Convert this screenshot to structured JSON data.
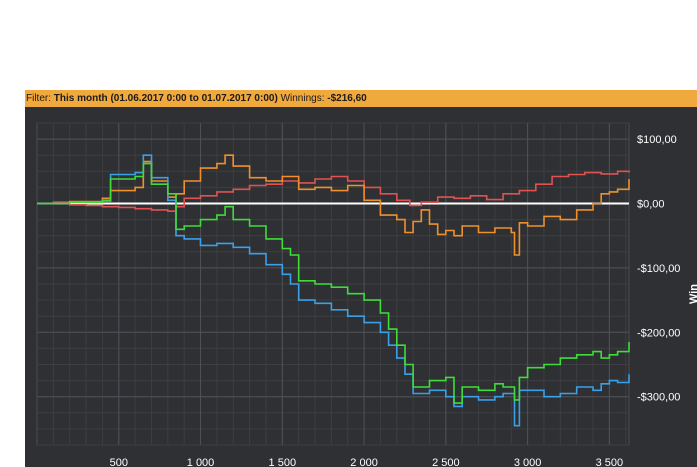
{
  "filter": {
    "label": "Filter:",
    "range_text": "This month (01.06.2017 0:00 to 01.07.2017 0:00)",
    "winnings_label": "Winnings:",
    "winnings_value": "-$216,60"
  },
  "chart_data": {
    "type": "line",
    "title": "",
    "xlabel": "",
    "ylabel": "Win",
    "xlim": [
      0,
      3620
    ],
    "ylim": [
      -375,
      125
    ],
    "grid": true,
    "y_axis_side": "right",
    "x_ticks": [
      {
        "value": 500,
        "label": "500"
      },
      {
        "value": 1000,
        "label": "1 000"
      },
      {
        "value": 1500,
        "label": "1 500"
      },
      {
        "value": 2000,
        "label": "2 000"
      },
      {
        "value": 2500,
        "label": "2 500"
      },
      {
        "value": 3000,
        "label": "3 000"
      },
      {
        "value": 3500,
        "label": "3 500"
      }
    ],
    "y_ticks": [
      {
        "value": 100,
        "label": "$100,00"
      },
      {
        "value": 0,
        "label": "$0,00"
      },
      {
        "value": -100,
        "label": "-$100,00"
      },
      {
        "value": -200,
        "label": "-$200,00"
      },
      {
        "value": -300,
        "label": "-$300,00"
      }
    ],
    "baseline": {
      "value": 0,
      "color": "#ffffff"
    },
    "series": [
      {
        "color": "#e05252",
        "points": [
          [
            0,
            0
          ],
          [
            100,
            2
          ],
          [
            200,
            -2
          ],
          [
            300,
            -3
          ],
          [
            400,
            -5
          ],
          [
            500,
            -6
          ],
          [
            600,
            -8
          ],
          [
            700,
            -10
          ],
          [
            800,
            -12
          ],
          [
            850,
            -5
          ],
          [
            900,
            8
          ],
          [
            1000,
            12
          ],
          [
            1100,
            18
          ],
          [
            1200,
            22
          ],
          [
            1300,
            28
          ],
          [
            1400,
            30
          ],
          [
            1500,
            35
          ],
          [
            1600,
            32
          ],
          [
            1700,
            38
          ],
          [
            1800,
            42
          ],
          [
            1900,
            35
          ],
          [
            2000,
            25
          ],
          [
            2100,
            15
          ],
          [
            2200,
            5
          ],
          [
            2280,
            -3
          ],
          [
            2350,
            2
          ],
          [
            2450,
            10
          ],
          [
            2550,
            8
          ],
          [
            2650,
            12
          ],
          [
            2750,
            6
          ],
          [
            2850,
            15
          ],
          [
            2950,
            20
          ],
          [
            3050,
            30
          ],
          [
            3150,
            42
          ],
          [
            3250,
            45
          ],
          [
            3350,
            48
          ],
          [
            3450,
            46
          ],
          [
            3550,
            50
          ],
          [
            3620,
            48
          ]
        ]
      },
      {
        "color": "#f0902c",
        "points": [
          [
            0,
            0
          ],
          [
            200,
            3
          ],
          [
            400,
            8
          ],
          [
            450,
            20
          ],
          [
            600,
            25
          ],
          [
            650,
            65
          ],
          [
            700,
            35
          ],
          [
            800,
            10
          ],
          [
            850,
            15
          ],
          [
            900,
            35
          ],
          [
            1000,
            55
          ],
          [
            1100,
            62
          ],
          [
            1150,
            75
          ],
          [
            1200,
            58
          ],
          [
            1300,
            40
          ],
          [
            1400,
            35
          ],
          [
            1500,
            42
          ],
          [
            1600,
            22
          ],
          [
            1700,
            25
          ],
          [
            1800,
            20
          ],
          [
            1900,
            28
          ],
          [
            2000,
            5
          ],
          [
            2100,
            -18
          ],
          [
            2200,
            -25
          ],
          [
            2250,
            -45
          ],
          [
            2300,
            -28
          ],
          [
            2350,
            -10
          ],
          [
            2400,
            -32
          ],
          [
            2450,
            -48
          ],
          [
            2500,
            -42
          ],
          [
            2550,
            -50
          ],
          [
            2600,
            -35
          ],
          [
            2700,
            -45
          ],
          [
            2800,
            -38
          ],
          [
            2900,
            -45
          ],
          [
            2920,
            -80
          ],
          [
            2950,
            -30
          ],
          [
            3000,
            -35
          ],
          [
            3100,
            -20
          ],
          [
            3200,
            -25
          ],
          [
            3300,
            -10
          ],
          [
            3400,
            0
          ],
          [
            3450,
            15
          ],
          [
            3500,
            18
          ],
          [
            3550,
            22
          ],
          [
            3620,
            38
          ]
        ]
      },
      {
        "color": "#3aa0e8",
        "points": [
          [
            0,
            0
          ],
          [
            200,
            2
          ],
          [
            400,
            5
          ],
          [
            450,
            45
          ],
          [
            600,
            48
          ],
          [
            650,
            75
          ],
          [
            700,
            40
          ],
          [
            800,
            5
          ],
          [
            850,
            -50
          ],
          [
            900,
            -55
          ],
          [
            1000,
            -65
          ],
          [
            1100,
            -62
          ],
          [
            1200,
            -68
          ],
          [
            1300,
            -78
          ],
          [
            1400,
            -95
          ],
          [
            1500,
            -110
          ],
          [
            1550,
            -125
          ],
          [
            1600,
            -150
          ],
          [
            1700,
            -155
          ],
          [
            1800,
            -165
          ],
          [
            1900,
            -175
          ],
          [
            2000,
            -185
          ],
          [
            2100,
            -200
          ],
          [
            2150,
            -220
          ],
          [
            2200,
            -240
          ],
          [
            2250,
            -265
          ],
          [
            2300,
            -295
          ],
          [
            2400,
            -290
          ],
          [
            2500,
            -300
          ],
          [
            2550,
            -315
          ],
          [
            2600,
            -300
          ],
          [
            2700,
            -305
          ],
          [
            2800,
            -300
          ],
          [
            2850,
            -295
          ],
          [
            2920,
            -345
          ],
          [
            2950,
            -290
          ],
          [
            3100,
            -300
          ],
          [
            3200,
            -295
          ],
          [
            3300,
            -285
          ],
          [
            3400,
            -290
          ],
          [
            3450,
            -280
          ],
          [
            3500,
            -275
          ],
          [
            3550,
            -278
          ],
          [
            3620,
            -265
          ]
        ]
      },
      {
        "color": "#3fdc3a",
        "points": [
          [
            0,
            0
          ],
          [
            200,
            2
          ],
          [
            400,
            4
          ],
          [
            450,
            38
          ],
          [
            600,
            42
          ],
          [
            650,
            62
          ],
          [
            700,
            30
          ],
          [
            800,
            15
          ],
          [
            850,
            -40
          ],
          [
            900,
            -35
          ],
          [
            1000,
            -25
          ],
          [
            1100,
            -18
          ],
          [
            1150,
            -5
          ],
          [
            1200,
            -25
          ],
          [
            1300,
            -35
          ],
          [
            1400,
            -55
          ],
          [
            1500,
            -70
          ],
          [
            1550,
            -80
          ],
          [
            1600,
            -120
          ],
          [
            1700,
            -125
          ],
          [
            1800,
            -130
          ],
          [
            1900,
            -140
          ],
          [
            2000,
            -150
          ],
          [
            2100,
            -170
          ],
          [
            2150,
            -195
          ],
          [
            2200,
            -220
          ],
          [
            2250,
            -250
          ],
          [
            2300,
            -285
          ],
          [
            2400,
            -275
          ],
          [
            2500,
            -270
          ],
          [
            2550,
            -310
          ],
          [
            2600,
            -285
          ],
          [
            2700,
            -290
          ],
          [
            2800,
            -280
          ],
          [
            2850,
            -285
          ],
          [
            2920,
            -305
          ],
          [
            2950,
            -270
          ],
          [
            3000,
            -255
          ],
          [
            3100,
            -250
          ],
          [
            3200,
            -240
          ],
          [
            3300,
            -235
          ],
          [
            3400,
            -230
          ],
          [
            3450,
            -240
          ],
          [
            3500,
            -235
          ],
          [
            3550,
            -230
          ],
          [
            3620,
            -215
          ]
        ]
      }
    ]
  }
}
